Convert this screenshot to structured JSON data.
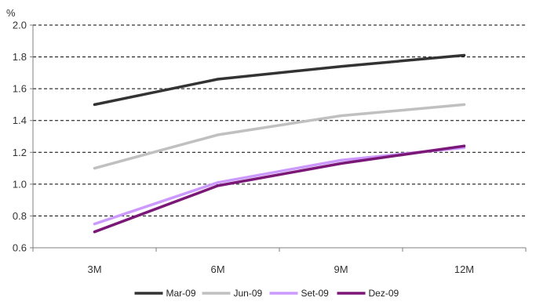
{
  "chart_data": {
    "type": "line",
    "y_unit_label": "%",
    "categories": [
      "3M",
      "6M",
      "9M",
      "12M"
    ],
    "ylim": [
      0.6,
      2.0
    ],
    "y_ticks": [
      "0.6",
      "0.8",
      "1.0",
      "1.2",
      "1.4",
      "1.6",
      "1.8",
      "2.0"
    ],
    "grid": true,
    "legend_position": "bottom",
    "series": [
      {
        "name": "Mar-09",
        "color": "#333333",
        "values": [
          1.5,
          1.66,
          1.74,
          1.81
        ]
      },
      {
        "name": "Jun-09",
        "color": "#c0c0c0",
        "values": [
          1.1,
          1.31,
          1.43,
          1.5
        ]
      },
      {
        "name": "Set-09",
        "color": "#cc99ff",
        "values": [
          0.75,
          1.01,
          1.15,
          1.23
        ]
      },
      {
        "name": "Dez-09",
        "color": "#7a1777",
        "values": [
          0.7,
          0.99,
          1.13,
          1.24
        ]
      }
    ]
  }
}
